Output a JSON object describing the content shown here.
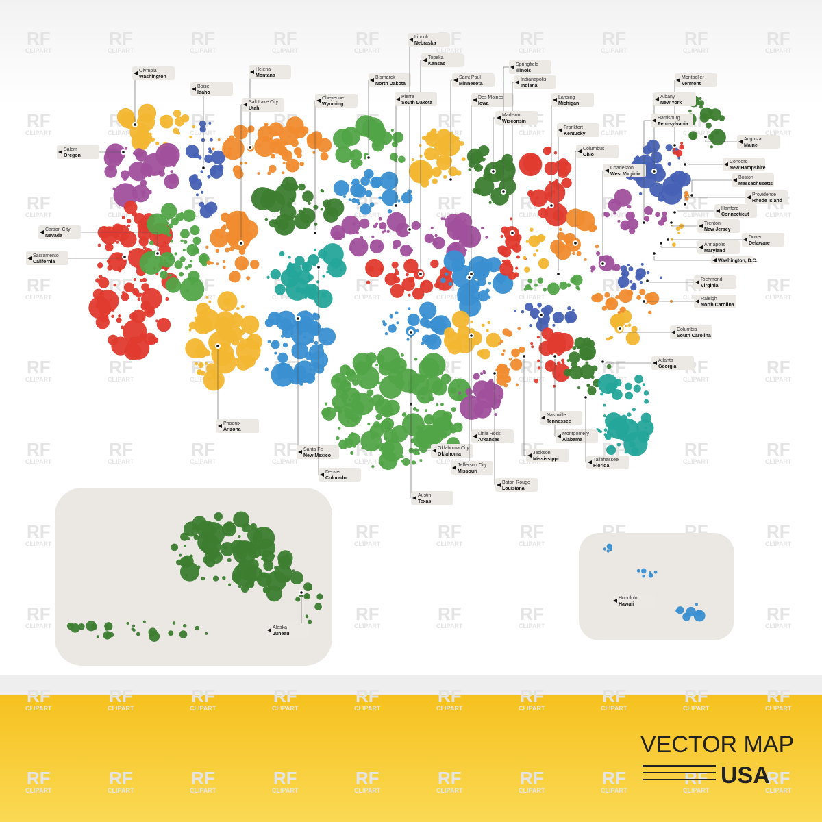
{
  "watermark": {
    "line1": "RF",
    "line2": "CLIPART"
  },
  "labels": [
    {
      "line1": "Olympia",
      "line2": "Washington"
    },
    {
      "line1": "Boise",
      "line2": "Idaho"
    },
    {
      "line1": "Helena",
      "line2": "Montana"
    },
    {
      "line1": "Salt Lake City",
      "line2": "Utah"
    },
    {
      "line1": "Cheyenne",
      "line2": "Wyoming"
    },
    {
      "line1": "Bismarck",
      "line2": "North Dakota"
    },
    {
      "line1": "Lincoln",
      "line2": "Nebraska"
    },
    {
      "line1": "Topeka",
      "line2": "Kansas"
    },
    {
      "line1": "Pierre",
      "line2": "South Dakota"
    },
    {
      "line1": "Saint Paul",
      "line2": "Minnesota"
    },
    {
      "line1": "Des Moines",
      "line2": "Iowa"
    },
    {
      "line1": "Springfield",
      "line2": "Illinois"
    },
    {
      "line1": "Indianapolis",
      "line2": "Indiana"
    },
    {
      "line1": "Madison",
      "line2": "Wisconsin"
    },
    {
      "line1": "Lansing",
      "line2": "Michigan"
    },
    {
      "line1": "Frankfort",
      "line2": "Kentucky"
    },
    {
      "line1": "Columbus",
      "line2": "Ohio"
    },
    {
      "line1": "Charleston",
      "line2": "West Virginia"
    },
    {
      "line1": "Montpelier",
      "line2": "Vermont"
    },
    {
      "line1": "Albany",
      "line2": "New York"
    },
    {
      "line1": "Harrisburg",
      "line2": "Pennsylvania"
    },
    {
      "line1": "Augusta",
      "line2": "Maine"
    },
    {
      "line1": "Concord",
      "line2": "New Hampshire"
    },
    {
      "line1": "Boston",
      "line2": "Massachusetts"
    },
    {
      "line1": "Providence",
      "line2": "Rhode Island"
    },
    {
      "line1": "Hartford",
      "line2": "Connecticut"
    },
    {
      "line1": "Trenton",
      "line2": "New Jersey"
    },
    {
      "line1": "Dover",
      "line2": "Delaware"
    },
    {
      "line1": "Annapolis",
      "line2": "Maryland"
    },
    {
      "line1": "Washington, D.C."
    },
    {
      "line1": "Richmond",
      "line2": "Virginia"
    },
    {
      "line1": "Raleigh",
      "line2": "North Carolina"
    },
    {
      "line1": "Columbia",
      "line2": "South Carolina"
    },
    {
      "line1": "Atlanta",
      "line2": "Georgia"
    },
    {
      "line1": "Salem",
      "line2": "Oregon"
    },
    {
      "line1": "Carson City",
      "line2": "Nevada"
    },
    {
      "line1": "Sacramento",
      "line2": "California"
    },
    {
      "line1": "Phoenix",
      "line2": "Arizona"
    },
    {
      "line1": "Santa Fe",
      "line2": "New Mexico"
    },
    {
      "line1": "Denver",
      "line2": "Colorado"
    },
    {
      "line1": "Austin",
      "line2": "Texas"
    },
    {
      "line1": "Oklahoma City",
      "line2": "Oklahoma"
    },
    {
      "line1": "Jefferson City",
      "line2": "Missouri"
    },
    {
      "line1": "Little Rock",
      "line2": "Arkansas"
    },
    {
      "line1": "Baton Rouge",
      "line2": "Louisiana"
    },
    {
      "line1": "Jackson",
      "line2": "Mississippi"
    },
    {
      "line1": "Montgomery",
      "line2": "Alabama"
    },
    {
      "line1": "Nashville",
      "line2": "Tennessee"
    },
    {
      "line1": "Tallahassee",
      "line2": "Florida"
    },
    {
      "line1": "Alaska",
      "line2": "Juneau"
    },
    {
      "line1": "Honolulu",
      "line2": "Hawaii"
    }
  ],
  "title": {
    "line1": "VECTOR MAP",
    "line2": "USA"
  }
}
